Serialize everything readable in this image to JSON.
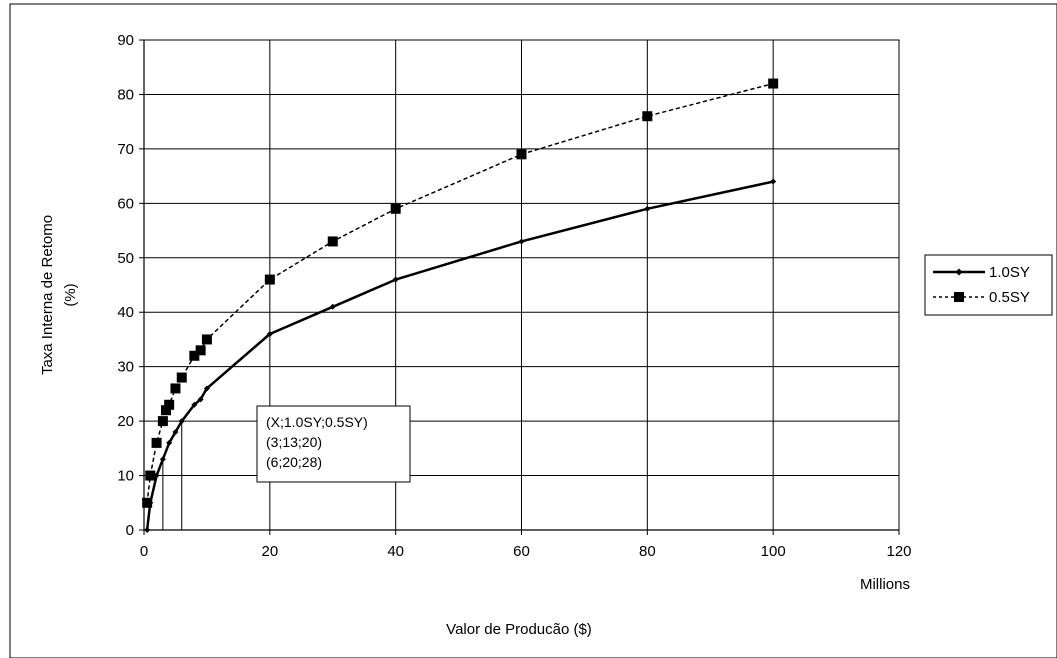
{
  "chart_data": {
    "type": "line",
    "title": "",
    "xlabel": "Valor de Producão ($)",
    "x_unit_label": "Millions",
    "ylabel_line1": "Taxa Interna de Retomo",
    "ylabel_line2": "(%)",
    "xlim": [
      0,
      120
    ],
    "ylim": [
      0,
      90
    ],
    "x_ticks": [
      0,
      20,
      40,
      60,
      80,
      100,
      120
    ],
    "y_ticks": [
      0,
      10,
      20,
      30,
      40,
      50,
      60,
      70,
      80,
      90
    ],
    "grid": true,
    "legend_position": "right",
    "series": [
      {
        "name": "1.0SY",
        "style": "solid",
        "color": "#000000",
        "marker": "diamond",
        "points": [
          [
            0.5,
            0
          ],
          [
            1,
            5
          ],
          [
            2,
            10
          ],
          [
            3,
            13
          ],
          [
            4,
            16
          ],
          [
            5,
            18
          ],
          [
            6,
            20
          ],
          [
            8,
            23
          ],
          [
            9,
            24
          ],
          [
            10,
            26
          ],
          [
            20,
            36
          ],
          [
            30,
            41
          ],
          [
            40,
            46
          ],
          [
            60,
            53
          ],
          [
            80,
            59
          ],
          [
            100,
            64
          ]
        ]
      },
      {
        "name": "0.5SY",
        "style": "dotted",
        "color": "#000000",
        "marker": "square",
        "points": [
          [
            0.5,
            5
          ],
          [
            1,
            10
          ],
          [
            2,
            16
          ],
          [
            3,
            20
          ],
          [
            3.5,
            22
          ],
          [
            4,
            23
          ],
          [
            5,
            26
          ],
          [
            6,
            28
          ],
          [
            8,
            32
          ],
          [
            9,
            33
          ],
          [
            10,
            35
          ],
          [
            20,
            46
          ],
          [
            30,
            53
          ],
          [
            40,
            59
          ],
          [
            60,
            69
          ],
          [
            80,
            76
          ],
          [
            100,
            82
          ]
        ]
      }
    ],
    "vertical_markers": [
      {
        "x": 3,
        "y": 13
      },
      {
        "x": 6,
        "y": 20
      }
    ],
    "annotation": {
      "lines": [
        "(X;1.0SY;0.5SY)",
        "(3;13;20)",
        "(6;20;28)"
      ]
    }
  }
}
